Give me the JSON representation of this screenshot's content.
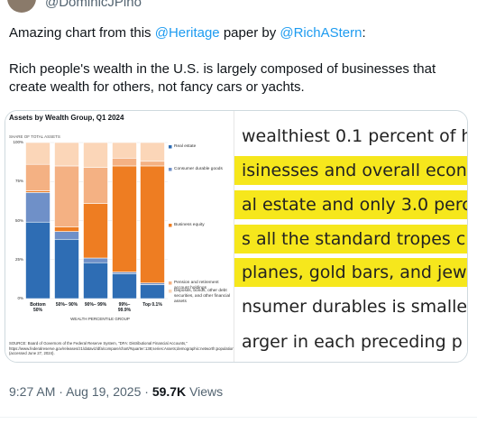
{
  "tweet": {
    "handle": "@DominicJPino",
    "line1": [
      "Amazing chart from this ",
      "@Heritage",
      " paper by ",
      "@RichAStern",
      ":"
    ],
    "paragraph": "Rich people's wealth in the U.S. is largely composed of businesses that create wealth for others, not fancy cars or yachts.",
    "time": "9:27 AM",
    "separator": "·",
    "date": "Aug 19, 2025",
    "views": "59.7K",
    "views_label": "Views"
  },
  "chart_data": {
    "type": "bar",
    "stacked": true,
    "title": "Assets by Wealth Group, Q1 2024",
    "subtitle": "SHARE OF TOTAL ASSETS",
    "x_label": "WEALTH PERCENTILE GROUP",
    "categories": [
      "Bottom 50%",
      "50%– 90%",
      "90%– 99%",
      "99%– 99.9%",
      "Top 0.1%"
    ],
    "series": [
      {
        "name": "Real estate",
        "color": "#2e6db4",
        "values": [
          49,
          38,
          23,
          16,
          9
        ]
      },
      {
        "name": "Consumer durable goods",
        "color": "#6f90c8",
        "values": [
          19,
          5,
          3,
          1,
          1
        ]
      },
      {
        "name": "Business equity",
        "color": "#ee7d22",
        "values": [
          1,
          3,
          35,
          68,
          75
        ]
      },
      {
        "name": "Pension and retirement account holdings",
        "color": "#f4b183",
        "values": [
          17,
          39,
          23,
          5,
          3
        ]
      },
      {
        "name": "Deposits, bonds, other debt securities, and other financial assets",
        "color": "#fbd6b8",
        "values": [
          14,
          15,
          16,
          10,
          12
        ]
      }
    ],
    "ylim": [
      0,
      100
    ],
    "yticks": [
      {
        "value": 0,
        "label": "0%"
      },
      {
        "value": 25,
        "label": "25%"
      },
      {
        "value": 50,
        "label": "50%"
      },
      {
        "value": 75,
        "label": "75%"
      },
      {
        "value": 100,
        "label": "100%"
      }
    ],
    "grid": true,
    "source": "SOURCE: Board of Governors of the Federal Reserve System, \"DFA: Distributional Financial Accounts,\" https://www.federalreserve.gov/releases/z1/dataviz/dfa/compare/chart/#quarter:138;series:Assets;demographic:networth;population:1,3,5,7;units:shares;range:2009.1,2024.1 (accessed June 27, 2024)."
  },
  "excerpt": {
    "lines": [
      {
        "text": "wealthiest 0.1 percent of h",
        "highlighted": false
      },
      {
        "text": "isinesses and overall econ",
        "highlighted": true
      },
      {
        "text": "al estate and only 3.0 perc",
        "highlighted": true
      },
      {
        "text": "s all the standard tropes c",
        "highlighted": true
      },
      {
        "text": "planes, gold bars, and jew",
        "highlighted": true
      },
      {
        "text": "nsumer durables is smalle",
        "highlighted": false
      },
      {
        "text": "arger in each preceding p",
        "highlighted": false
      }
    ]
  }
}
